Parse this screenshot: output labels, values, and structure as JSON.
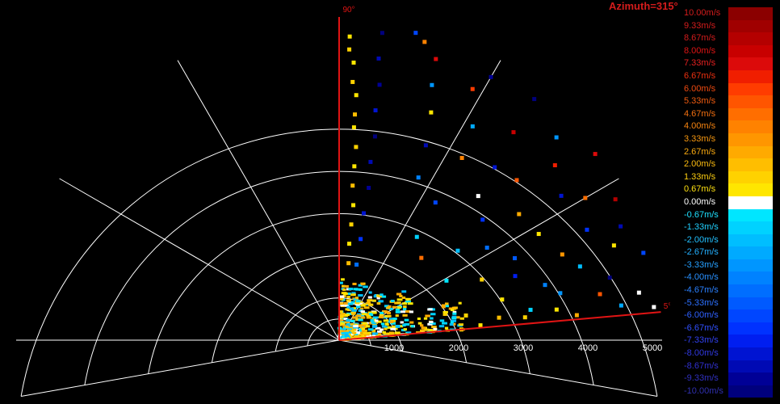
{
  "title": "Azimuth=315°",
  "chart_data": {
    "type": "scatter",
    "polar": true,
    "range_max": 5000,
    "range_rings": [
      1000,
      2000,
      3000,
      4000,
      5000
    ],
    "range_tick_labels": [
      "1000",
      "2000",
      "3000",
      "4000",
      "5000"
    ],
    "sector_start_deg": 5,
    "sector_end_deg": 90,
    "sector_labels": [
      "90°",
      "5°"
    ],
    "velocity_unit": "m/s",
    "colors": {
      "background": "#000000",
      "grid": "#ffffff",
      "sector_edge": "#e01414",
      "title": "#d41c1c"
    },
    "legend": [
      {
        "label": "10.00m/s",
        "color": "#8b0000",
        "text": "#d41c1c"
      },
      {
        "label": "9.33m/s",
        "color": "#a00000",
        "text": "#d41c1c"
      },
      {
        "label": "8.67m/s",
        "color": "#b40000",
        "text": "#d41c1c"
      },
      {
        "label": "8.00m/s",
        "color": "#c80000",
        "text": "#e01414"
      },
      {
        "label": "7.33m/s",
        "color": "#dc0a0a",
        "text": "#e62020"
      },
      {
        "label": "6.67m/s",
        "color": "#f01e00",
        "text": "#ee3010"
      },
      {
        "label": "6.00m/s",
        "color": "#ff3c00",
        "text": "#f04a10"
      },
      {
        "label": "5.33m/s",
        "color": "#ff5500",
        "text": "#f25c10"
      },
      {
        "label": "4.67m/s",
        "color": "#ff6e00",
        "text": "#f47010"
      },
      {
        "label": "4.00m/s",
        "color": "#ff8200",
        "text": "#f68410"
      },
      {
        "label": "3.33m/s",
        "color": "#ff9600",
        "text": "#f89810"
      },
      {
        "label": "2.67m/s",
        "color": "#ffaa00",
        "text": "#faaa10"
      },
      {
        "label": "2.00m/s",
        "color": "#ffbe00",
        "text": "#fcbc10"
      },
      {
        "label": "1.33m/s",
        "color": "#ffd200",
        "text": "#fdce10"
      },
      {
        "label": "0.67m/s",
        "color": "#ffe600",
        "text": "#fee010"
      },
      {
        "label": "0.00m/s",
        "color": "#ffffff",
        "text": "#ffffff"
      },
      {
        "label": "-0.67m/s",
        "color": "#00e6ff",
        "text": "#1ee0ff"
      },
      {
        "label": "-1.33m/s",
        "color": "#00d2ff",
        "text": "#20d0ff"
      },
      {
        "label": "-2.00m/s",
        "color": "#00beff",
        "text": "#22c0ff"
      },
      {
        "label": "-2.67m/s",
        "color": "#00aaff",
        "text": "#24b0ff"
      },
      {
        "label": "-3.33m/s",
        "color": "#0096ff",
        "text": "#26a0ff"
      },
      {
        "label": "-4.00m/s",
        "color": "#0082ff",
        "text": "#2890ff"
      },
      {
        "label": "-4.67m/s",
        "color": "#006eff",
        "text": "#2a80ff"
      },
      {
        "label": "-5.33m/s",
        "color": "#005aff",
        "text": "#2c70ff"
      },
      {
        "label": "-6.00m/s",
        "color": "#0046ff",
        "text": "#2e60ff"
      },
      {
        "label": "-6.67m/s",
        "color": "#0032ff",
        "text": "#3050ff"
      },
      {
        "label": "-7.33m/s",
        "color": "#001ef0",
        "text": "#3040f0"
      },
      {
        "label": "-8.00m/s",
        "color": "#0014d2",
        "text": "#3038e0"
      },
      {
        "label": "-8.67m/s",
        "color": "#000ab4",
        "text": "#3030d0"
      },
      {
        "label": "-9.33m/s",
        "color": "#000096",
        "text": "#3030c0"
      },
      {
        "label": "-10.00m/s",
        "color": "#00007d",
        "text": "#3030b0"
      }
    ],
    "points": [
      {
        "az": 88,
        "r": 4700,
        "v": 0.67
      },
      {
        "az": 88,
        "r": 4500,
        "v": 1.33
      },
      {
        "az": 87,
        "r": 4300,
        "v": 0.67
      },
      {
        "az": 87,
        "r": 4000,
        "v": 1.33
      },
      {
        "az": 86,
        "r": 3800,
        "v": 0.67
      },
      {
        "az": 86,
        "r": 3500,
        "v": 2.0
      },
      {
        "az": 86,
        "r": 3300,
        "v": 0.67
      },
      {
        "az": 85,
        "r": 3000,
        "v": 1.33
      },
      {
        "az": 85,
        "r": 2700,
        "v": 0.67
      },
      {
        "az": 85,
        "r": 2400,
        "v": 2.0
      },
      {
        "az": 84,
        "r": 2100,
        "v": 0.67
      },
      {
        "az": 84,
        "r": 1800,
        "v": 1.33
      },
      {
        "az": 84,
        "r": 1500,
        "v": 0.67
      },
      {
        "az": 83,
        "r": 1200,
        "v": 2.0
      },
      {
        "az": 82,
        "r": 4800,
        "v": -10.0
      },
      {
        "az": 82,
        "r": 4400,
        "v": -8.67
      },
      {
        "az": 81,
        "r": 4000,
        "v": -9.33
      },
      {
        "az": 81,
        "r": 3600,
        "v": -8.0
      },
      {
        "az": 80,
        "r": 3200,
        "v": -10.0
      },
      {
        "az": 80,
        "r": 2800,
        "v": -8.67
      },
      {
        "az": 79,
        "r": 2400,
        "v": -9.33
      },
      {
        "az": 79,
        "r": 2000,
        "v": -8.0
      },
      {
        "az": 78,
        "r": 1600,
        "v": -6.67
      },
      {
        "az": 77,
        "r": 1200,
        "v": -4.67
      },
      {
        "az": 76,
        "r": 4900,
        "v": -6.0
      },
      {
        "az": 74,
        "r": 4800,
        "v": 4.0
      },
      {
        "az": 71,
        "r": 4600,
        "v": 7.33
      },
      {
        "az": 70,
        "r": 4200,
        "v": -3.33
      },
      {
        "az": 68,
        "r": 3800,
        "v": 0.67
      },
      {
        "az": 66,
        "r": 3300,
        "v": -8.67
      },
      {
        "az": 64,
        "r": 2800,
        "v": -4.0
      },
      {
        "az": 62,
        "r": 4400,
        "v": 6.0
      },
      {
        "az": 60,
        "r": 4700,
        "v": -9.33
      },
      {
        "az": 58,
        "r": 3900,
        "v": -2.67
      },
      {
        "az": 56,
        "r": 3400,
        "v": 4.0
      },
      {
        "az": 55,
        "r": 2600,
        "v": -6.0
      },
      {
        "az": 53,
        "r": 2000,
        "v": -1.33
      },
      {
        "az": 51,
        "r": 4800,
        "v": -10.0
      },
      {
        "az": 50,
        "r": 4200,
        "v": 8.0
      },
      {
        "az": 48,
        "r": 3600,
        "v": -8.0
      },
      {
        "az": 46,
        "r": 3100,
        "v": 0.0
      },
      {
        "az": 45,
        "r": 1800,
        "v": 4.67
      },
      {
        "az": 43,
        "r": 4600,
        "v": -3.33
      },
      {
        "az": 42,
        "r": 3700,
        "v": 5.33
      },
      {
        "az": 40,
        "r": 2900,
        "v": -6.67
      },
      {
        "az": 39,
        "r": 4300,
        "v": 6.67
      },
      {
        "az": 37,
        "r": 2300,
        "v": -2.0
      },
      {
        "az": 36,
        "r": 4900,
        "v": 7.33
      },
      {
        "az": 35,
        "r": 3400,
        "v": 2.67
      },
      {
        "az": 33,
        "r": 4100,
        "v": -8.0
      },
      {
        "az": 32,
        "r": 2700,
        "v": -4.67
      },
      {
        "az": 30,
        "r": 4400,
        "v": 4.67
      },
      {
        "az": 29,
        "r": 1900,
        "v": -0.67
      },
      {
        "az": 28,
        "r": 3500,
        "v": 0.67
      },
      {
        "az": 27,
        "r": 4800,
        "v": 8.67
      },
      {
        "az": 25,
        "r": 3000,
        "v": -5.33
      },
      {
        "az": 24,
        "r": 4200,
        "v": -6.67
      },
      {
        "az": 23,
        "r": 2400,
        "v": 1.33
      },
      {
        "az": 22,
        "r": 4700,
        "v": -8.67
      },
      {
        "az": 21,
        "r": 3700,
        "v": 3.33
      },
      {
        "az": 20,
        "r": 2900,
        "v": -7.33
      },
      {
        "az": 19,
        "r": 4500,
        "v": 0.67
      },
      {
        "az": 18,
        "r": 1700,
        "v": 2.67
      },
      {
        "az": 17,
        "r": 3900,
        "v": -2.0
      },
      {
        "az": 16,
        "r": 4900,
        "v": -6.0
      },
      {
        "az": 15,
        "r": 3300,
        "v": -4.0
      },
      {
        "az": 14,
        "r": 2600,
        "v": 0.67
      },
      {
        "az": 13,
        "r": 4300,
        "v": -10.0
      },
      {
        "az": 12,
        "r": 3500,
        "v": -3.33
      },
      {
        "az": 11,
        "r": 2000,
        "v": 1.33
      },
      {
        "az": 10,
        "r": 4100,
        "v": 5.33
      },
      {
        "az": 9,
        "r": 3000,
        "v": -1.33
      },
      {
        "az": 9,
        "r": 4700,
        "v": 0.0
      },
      {
        "az": 8,
        "r": 2500,
        "v": 2.0
      },
      {
        "az": 8,
        "r": 3400,
        "v": 0.67
      },
      {
        "az": 7,
        "r": 2900,
        "v": 1.33
      },
      {
        "az": 7,
        "r": 4400,
        "v": -2.67
      },
      {
        "az": 6,
        "r": 2200,
        "v": 0.67
      },
      {
        "az": 6,
        "r": 3700,
        "v": 2.67
      },
      {
        "az": 6,
        "r": 4900,
        "v": 0.0
      },
      {
        "az": 5,
        "r": 1900,
        "v": 1.33
      }
    ]
  }
}
